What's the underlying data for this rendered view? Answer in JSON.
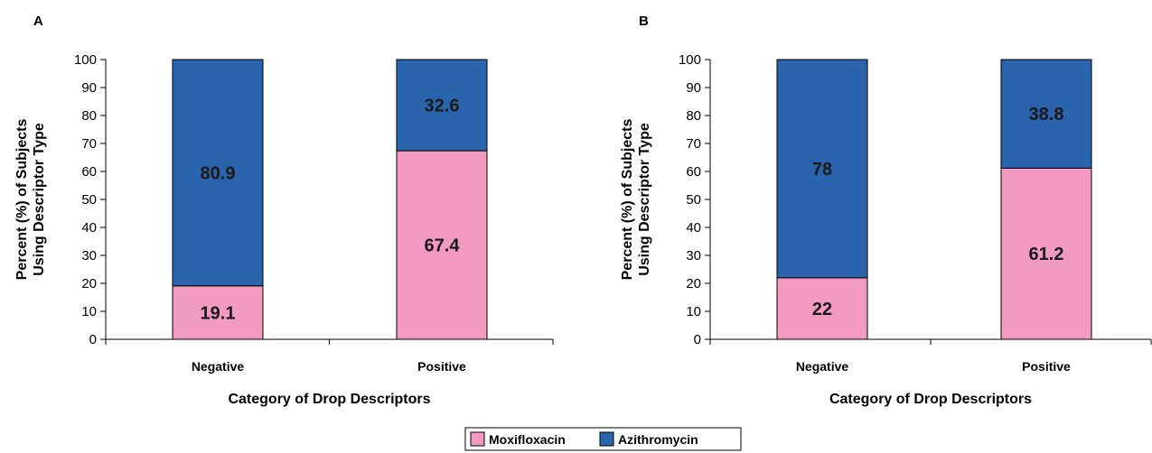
{
  "colors": {
    "moxifloxacin": "#f39ac3",
    "azithromycin": "#2a64ad",
    "axis": "#000000"
  },
  "legend": {
    "items": [
      {
        "label": "Moxifloxacin",
        "color_key": "moxifloxacin"
      },
      {
        "label": "Azithromycin",
        "color_key": "azithromycin"
      }
    ]
  },
  "chart_data": [
    {
      "panel": "A",
      "type": "bar",
      "stacked": true,
      "categories": [
        "Negative",
        "Positive"
      ],
      "series": [
        {
          "name": "Moxifloxacin",
          "values": [
            19.1,
            67.4
          ]
        },
        {
          "name": "Azithromycin",
          "values": [
            80.9,
            32.6
          ]
        }
      ],
      "xlabel": "Category of Drop Descriptors",
      "ylabel_lines": [
        "Percent (%) of Subjects",
        "Using Descriptor Type"
      ],
      "ylim": [
        0,
        100
      ],
      "yticks": [
        0,
        10,
        20,
        30,
        40,
        50,
        60,
        70,
        80,
        90,
        100
      ],
      "grid": false,
      "legend_position": "bottom-center"
    },
    {
      "panel": "B",
      "type": "bar",
      "stacked": true,
      "categories": [
        "Negative",
        "Positive"
      ],
      "series": [
        {
          "name": "Moxifloxacin",
          "values": [
            22,
            61.2
          ]
        },
        {
          "name": "Azithromycin",
          "values": [
            78,
            38.8
          ]
        }
      ],
      "xlabel": "Category of Drop Descriptors",
      "ylabel_lines": [
        "Percent (%) of Subjects",
        "Using Descriptor Type"
      ],
      "ylim": [
        0,
        100
      ],
      "yticks": [
        0,
        10,
        20,
        30,
        40,
        50,
        60,
        70,
        80,
        90,
        100
      ],
      "grid": false,
      "legend_position": "bottom-center"
    }
  ]
}
